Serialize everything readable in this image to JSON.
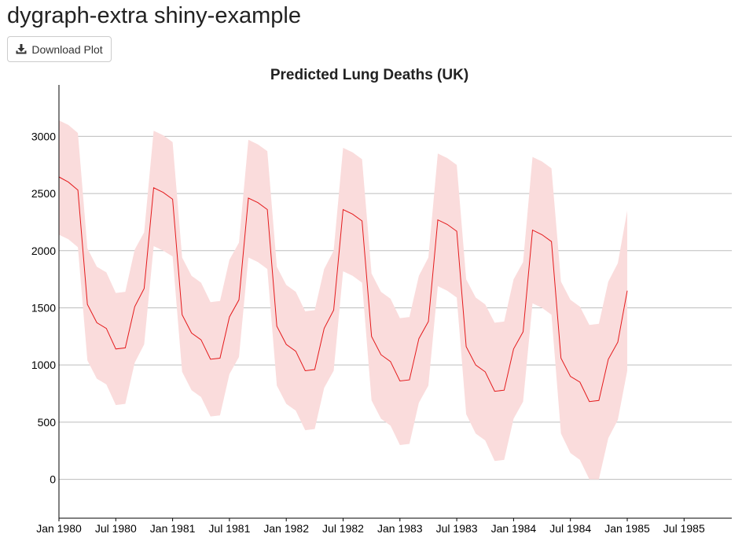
{
  "page": {
    "title": "dygraph-extra shiny-example",
    "download_button": {
      "label": "Download Plot",
      "icon": "download-icon"
    }
  },
  "chart_data": {
    "type": "line",
    "title": "Predicted Lung Deaths (UK)",
    "xlabel": "",
    "ylabel": "",
    "x_tick_labels": [
      "Jan 1980",
      "Jul 1980",
      "Jan 1981",
      "Jul 1981",
      "Jan 1982",
      "Jul 1982",
      "Jan 1983",
      "Jul 1983",
      "Jan 1984",
      "Jul 1984",
      "Jan 1985",
      "Jul 1985"
    ],
    "y_ticks": [
      0,
      500,
      1000,
      1500,
      2000,
      2500,
      3000
    ],
    "ylim": [
      -340,
      3450
    ],
    "x_start": "1980-01",
    "x_months_span": 71,
    "grid": {
      "horizontal": true,
      "vertical": false
    },
    "colors": {
      "line": "#e41a1c",
      "band": "#fadcdc",
      "grid": "#bdbdbd",
      "axis": "#000000"
    },
    "series": [
      {
        "fit": [
          2645,
          2600,
          2530,
          1530,
          1370,
          1320,
          1140,
          1150,
          1510,
          1670,
          2550,
          2510,
          2450,
          1440,
          1280,
          1220,
          1050,
          1060,
          1420,
          1570,
          2460,
          2420,
          2360,
          1340,
          1180,
          1120,
          950,
          960,
          1320,
          1480,
          2360,
          2320,
          2260,
          1250,
          1090,
          1030,
          860,
          870,
          1230,
          1380,
          2270,
          2230,
          2170,
          1160,
          1000,
          940,
          770,
          780,
          1140,
          1290,
          2180,
          2140,
          2080,
          1060,
          900,
          850,
          680,
          690,
          1050,
          1200,
          1650
        ],
        "upper": [
          3140,
          3100,
          3030,
          2020,
          1860,
          1810,
          1630,
          1640,
          2010,
          2160,
          3050,
          3010,
          2950,
          1940,
          1780,
          1720,
          1550,
          1560,
          1920,
          2070,
          2970,
          2930,
          2870,
          1860,
          1700,
          1640,
          1470,
          1480,
          1840,
          2000,
          2900,
          2860,
          2800,
          1800,
          1640,
          1580,
          1410,
          1420,
          1780,
          1940,
          2850,
          2810,
          2750,
          1750,
          1590,
          1530,
          1370,
          1380,
          1750,
          1900,
          2820,
          2780,
          2720,
          1730,
          1570,
          1510,
          1350,
          1360,
          1730,
          1890,
          2350
        ],
        "lower": [
          2140,
          2100,
          2030,
          1040,
          880,
          830,
          650,
          660,
          1020,
          1180,
          2040,
          2000,
          1950,
          940,
          780,
          720,
          550,
          560,
          920,
          1070,
          1940,
          1900,
          1840,
          820,
          660,
          600,
          430,
          440,
          800,
          950,
          1820,
          1780,
          1720,
          690,
          530,
          470,
          300,
          310,
          670,
          820,
          1690,
          1650,
          1590,
          570,
          400,
          340,
          160,
          170,
          530,
          680,
          1540,
          1500,
          1440,
          400,
          230,
          170,
          0,
          0,
          360,
          520,
          950
        ]
      }
    ]
  }
}
